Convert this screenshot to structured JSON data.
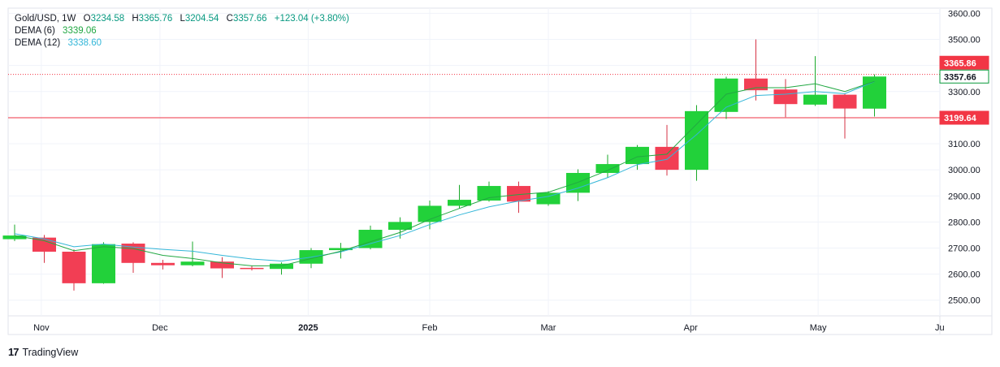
{
  "legend": {
    "symbol": "Gold/USD, 1W",
    "o_label": "O",
    "o_value": "3234.58",
    "h_label": "H",
    "h_value": "3365.76",
    "l_label": "L",
    "l_value": "3204.54",
    "c_label": "C",
    "c_value": "3357.66",
    "change": "+123.04 (+3.80%)",
    "dema6_label": "DEMA (6)",
    "dema6_value": "3339.06",
    "dema12_label": "DEMA (12)",
    "dema12_value": "3338.60"
  },
  "branding": {
    "logo": "17",
    "name": "TradingView"
  },
  "colors": {
    "up": "#22d13a",
    "down": "#f23e54",
    "wick_up": "#1aa82a",
    "wick_down": "#d63346",
    "dema6": "#22a843",
    "dema12": "#33b6d8",
    "price_tag_red": "#f23645",
    "price_tag_green": "#089a3a",
    "grid": "#f0f3fa",
    "axis_text": "#131722"
  },
  "chart_data": {
    "type": "candlestick",
    "timeframe": "1W",
    "y_ticks": [
      2500,
      2600,
      2700,
      2800,
      2900,
      3000,
      3100,
      3200,
      3300,
      3400,
      3500,
      3600
    ],
    "y_tick_labels": [
      "2500.00",
      "2600.00",
      "2700.00",
      "2800.00",
      "2900.00",
      "3000.00",
      "3100.00",
      "3200.00",
      "3300.00",
      "3400.00",
      "3500.00",
      "3600.00"
    ],
    "ylim": [
      2440,
      3620
    ],
    "x_labels": [
      {
        "text": "Nov",
        "index": 0.9,
        "bold": false
      },
      {
        "text": "Dec",
        "index": 4.9,
        "bold": false
      },
      {
        "text": "2025",
        "index": 9.9,
        "bold": true
      },
      {
        "text": "Feb",
        "index": 14.0,
        "bold": false
      },
      {
        "text": "Mar",
        "index": 18.0,
        "bold": false
      },
      {
        "text": "Apr",
        "index": 22.8,
        "bold": false
      },
      {
        "text": "May",
        "index": 27.1,
        "bold": false
      },
      {
        "text": "Ju",
        "index": 31.2,
        "bold": false
      }
    ],
    "candles": [
      {
        "o": 2734,
        "h": 2790,
        "l": 2727,
        "c": 2748
      },
      {
        "o": 2740,
        "h": 2750,
        "l": 2643,
        "c": 2686
      },
      {
        "o": 2686,
        "h": 2695,
        "l": 2537,
        "c": 2565
      },
      {
        "o": 2565,
        "h": 2722,
        "l": 2563,
        "c": 2715
      },
      {
        "o": 2717,
        "h": 2722,
        "l": 2605,
        "c": 2643
      },
      {
        "o": 2643,
        "h": 2655,
        "l": 2618,
        "c": 2634
      },
      {
        "o": 2634,
        "h": 2725,
        "l": 2630,
        "c": 2648
      },
      {
        "o": 2648,
        "h": 2665,
        "l": 2585,
        "c": 2622
      },
      {
        "o": 2624,
        "h": 2632,
        "l": 2614,
        "c": 2620
      },
      {
        "o": 2620,
        "h": 2645,
        "l": 2598,
        "c": 2640
      },
      {
        "o": 2640,
        "h": 2700,
        "l": 2623,
        "c": 2692
      },
      {
        "o": 2692,
        "h": 2720,
        "l": 2660,
        "c": 2700
      },
      {
        "o": 2700,
        "h": 2786,
        "l": 2695,
        "c": 2770
      },
      {
        "o": 2770,
        "h": 2818,
        "l": 2736,
        "c": 2800
      },
      {
        "o": 2800,
        "h": 2882,
        "l": 2772,
        "c": 2862
      },
      {
        "o": 2862,
        "h": 2942,
        "l": 2852,
        "c": 2885
      },
      {
        "o": 2882,
        "h": 2955,
        "l": 2878,
        "c": 2938
      },
      {
        "o": 2938,
        "h": 2955,
        "l": 2835,
        "c": 2878
      },
      {
        "o": 2868,
        "h": 2918,
        "l": 2862,
        "c": 2912
      },
      {
        "o": 2912,
        "h": 3002,
        "l": 2880,
        "c": 2988
      },
      {
        "o": 2988,
        "h": 3058,
        "l": 2970,
        "c": 3022
      },
      {
        "o": 3022,
        "h": 3095,
        "l": 3000,
        "c": 3088
      },
      {
        "o": 3088,
        "h": 3172,
        "l": 2978,
        "c": 3000
      },
      {
        "o": 3000,
        "h": 3248,
        "l": 2958,
        "c": 3225
      },
      {
        "o": 3222,
        "h": 3357,
        "l": 3195,
        "c": 3350
      },
      {
        "o": 3350,
        "h": 3500,
        "l": 3266,
        "c": 3305
      },
      {
        "o": 3308,
        "h": 3348,
        "l": 3202,
        "c": 3252
      },
      {
        "o": 3250,
        "h": 3436,
        "l": 3245,
        "c": 3288
      },
      {
        "o": 3288,
        "h": 3292,
        "l": 3120,
        "c": 3235
      },
      {
        "o": 3234.58,
        "h": 3365.76,
        "l": 3204.54,
        "c": 3357.66
      }
    ],
    "dema6": [
      2748,
      2728,
      2690,
      2705,
      2698,
      2672,
      2660,
      2643,
      2632,
      2632,
      2660,
      2688,
      2724,
      2760,
      2810,
      2852,
      2893,
      2905,
      2914,
      2952,
      2998,
      3050,
      3060,
      3175,
      3290,
      3315,
      3315,
      3330,
      3300,
      3339.06
    ],
    "dema12": [
      2755,
      2735,
      2705,
      2715,
      2704,
      2695,
      2688,
      2672,
      2658,
      2650,
      2665,
      2685,
      2717,
      2748,
      2790,
      2827,
      2858,
      2880,
      2898,
      2930,
      2970,
      3020,
      3040,
      3135,
      3240,
      3285,
      3290,
      3300,
      3292,
      3338.6
    ],
    "price_tags": [
      {
        "value": 3365.86,
        "label": "3365.86",
        "color": "red",
        "line": "dotted"
      },
      {
        "value": 3357.66,
        "label": "3357.66",
        "color": "green",
        "line": "none"
      },
      {
        "value": 3199.64,
        "label": "3199.64",
        "color": "red",
        "line": "solid"
      }
    ]
  }
}
